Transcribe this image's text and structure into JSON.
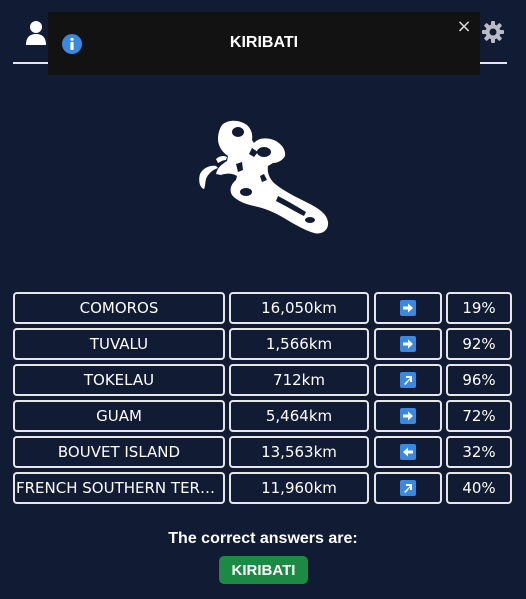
{
  "header": {
    "user_icon": "user-icon",
    "settings_icon": "gear-icon"
  },
  "toast": {
    "icon": "info-icon",
    "title": "KIRIBATI",
    "close_label": "×"
  },
  "silhouette": {
    "icon": "country-silhouette"
  },
  "colors": {
    "background": "#111b33",
    "toast_bg": "#121212",
    "info_blue": "#3b88e0",
    "answer_green": "#1c8a45"
  },
  "guesses": [
    {
      "name": "COMOROS",
      "distance": "16,050km",
      "direction": "east",
      "percent": "19%"
    },
    {
      "name": "TUVALU",
      "distance": "1,566km",
      "direction": "east",
      "percent": "92%"
    },
    {
      "name": "TOKELAU",
      "distance": "712km",
      "direction": "north-east",
      "percent": "96%"
    },
    {
      "name": "GUAM",
      "distance": "5,464km",
      "direction": "east",
      "percent": "72%"
    },
    {
      "name": "BOUVET ISLAND",
      "distance": "13,563km",
      "direction": "west",
      "percent": "32%"
    },
    {
      "name": "FRENCH SOUTHERN TERRITORIES",
      "distance": "11,960km",
      "direction": "north-east",
      "percent": "40%"
    }
  ],
  "result": {
    "label": "The correct answers are:",
    "answer": "KIRIBATI"
  }
}
